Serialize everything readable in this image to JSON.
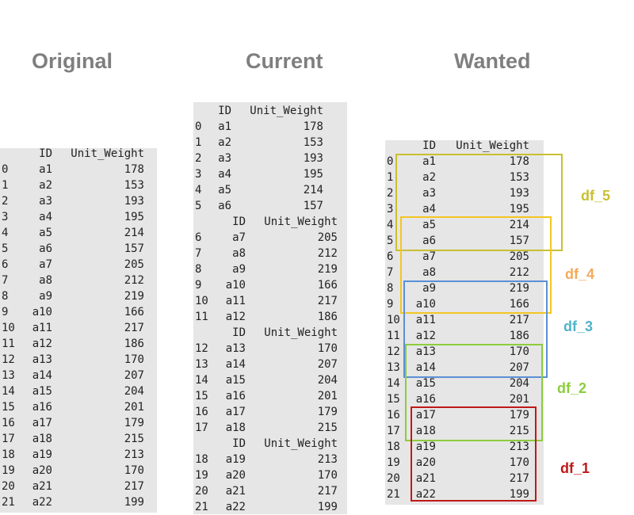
{
  "headings": {
    "original": "Original",
    "current": "Current",
    "wanted": "Wanted"
  },
  "header": {
    "id": "ID",
    "unit_weight": "Unit_Weight"
  },
  "rows": [
    {
      "idx": "0",
      "id": "a1",
      "w": "178"
    },
    {
      "idx": "1",
      "id": "a2",
      "w": "153"
    },
    {
      "idx": "2",
      "id": "a3",
      "w": "193"
    },
    {
      "idx": "3",
      "id": "a4",
      "w": "195"
    },
    {
      "idx": "4",
      "id": "a5",
      "w": "214"
    },
    {
      "idx": "5",
      "id": "a6",
      "w": "157"
    },
    {
      "idx": "6",
      "id": "a7",
      "w": "205"
    },
    {
      "idx": "7",
      "id": "a8",
      "w": "212"
    },
    {
      "idx": "8",
      "id": "a9",
      "w": "219"
    },
    {
      "idx": "9",
      "id": "a10",
      "w": "166"
    },
    {
      "idx": "10",
      "id": "a11",
      "w": "217"
    },
    {
      "idx": "11",
      "id": "a12",
      "w": "186"
    },
    {
      "idx": "12",
      "id": "a13",
      "w": "170"
    },
    {
      "idx": "13",
      "id": "a14",
      "w": "207"
    },
    {
      "idx": "14",
      "id": "a15",
      "w": "204"
    },
    {
      "idx": "15",
      "id": "a16",
      "w": "201"
    },
    {
      "idx": "16",
      "id": "a17",
      "w": "179"
    },
    {
      "idx": "17",
      "id": "a18",
      "w": "215"
    },
    {
      "idx": "18",
      "id": "a19",
      "w": "213"
    },
    {
      "idx": "19",
      "id": "a20",
      "w": "170"
    },
    {
      "idx": "20",
      "id": "a21",
      "w": "217"
    },
    {
      "idx": "21",
      "id": "a22",
      "w": "199"
    }
  ],
  "current_chunk_starts": [
    0,
    6,
    12,
    18
  ],
  "groups": [
    {
      "label": "df_5",
      "color": "#c8c032",
      "from": 0,
      "to": 5
    },
    {
      "label": "df_4",
      "color": "#f3c623",
      "label_color": "#f4a95c",
      "from": 4,
      "to": 9
    },
    {
      "label": "df_3",
      "color": "#5b8fd6",
      "label_color": "#4fb3c8",
      "from": 8,
      "to": 13
    },
    {
      "label": "df_2",
      "color": "#8ccd3c",
      "from": 12,
      "to": 17
    },
    {
      "label": "df_1",
      "color": "#c01818",
      "from": 16,
      "to": 21
    }
  ]
}
